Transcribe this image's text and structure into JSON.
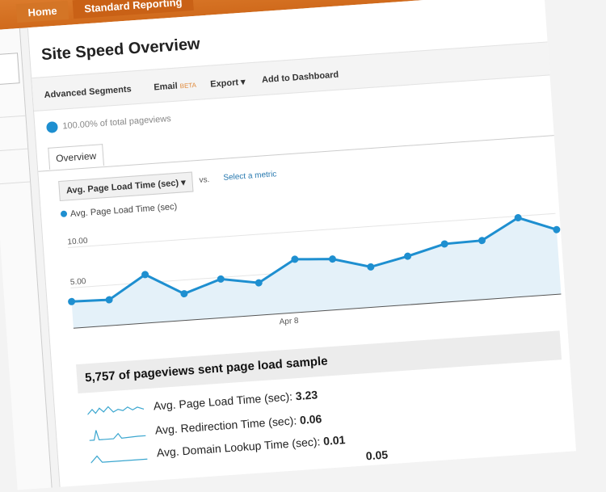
{
  "nav": {
    "tabs": [
      "Home",
      "Standard Reporting"
    ]
  },
  "header": {
    "title": "Site Speed Overview"
  },
  "toolbar": {
    "advanced_segments": "Advanced Segments",
    "email": "Email",
    "beta": "BETA",
    "export": "Export ▾",
    "add_dashboard": "Add to Dashboard"
  },
  "segment": {
    "label": "100.00% of total pageviews"
  },
  "tabs": {
    "overview": "Overview"
  },
  "metric": {
    "selected": "Avg. Page Load Time (sec) ▾",
    "vs": "vs.",
    "select": "Select a metric"
  },
  "colors": {
    "accent": "#1e8fd0",
    "orange": "#d97a2b"
  },
  "chart_data": {
    "type": "area",
    "series": [
      {
        "name": "Avg. Page Load Time (sec)",
        "values": [
          3.3,
          3.2,
          6.0,
          3.3,
          4.8,
          4.0,
          6.6,
          6.3,
          5.0,
          6.0,
          7.2,
          7.3,
          9.8,
          8.0
        ]
      }
    ],
    "yticks": [
      "10.00",
      "5.00"
    ],
    "ylim": [
      0,
      12
    ],
    "xlabel_tick": "Apr 8",
    "grid": true
  },
  "summary": {
    "title": "5,757 of pageviews sent page load sample",
    "stats": [
      {
        "label": "Avg. Page Load Time (sec):",
        "value": "3.23"
      },
      {
        "label": "Avg. Redirection Time (sec):",
        "value": "0.06"
      },
      {
        "label": "Avg. Domain Lookup Time (sec):",
        "value": "0.01"
      },
      {
        "label": "",
        "value": "0.05"
      }
    ]
  }
}
